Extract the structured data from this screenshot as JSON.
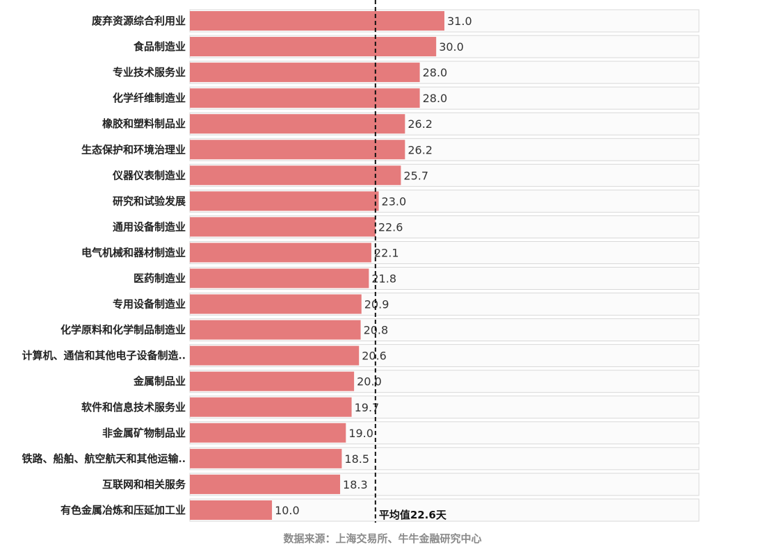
{
  "chart_data": {
    "type": "bar",
    "orientation": "horizontal",
    "categories": [
      "废弃资源综合利用业",
      "食品制造业",
      "专业技术服务业",
      "化学纤维制造业",
      "橡胶和塑料制品业",
      "生态保护和环境治理业",
      "仪器仪表制造业",
      "研究和试验发展",
      "通用设备制造业",
      "电气机械和器材制造业",
      "医药制造业",
      "专用设备制造业",
      "化学原料和化学制品制造业",
      "计算机、通信和其他电子设备制造..",
      "金属制品业",
      "软件和信息技术服务业",
      "非金属矿物制品业",
      "铁路、船舶、航空航天和其他运输..",
      "互联网和相关服务",
      "有色金属冶炼和压延加工业"
    ],
    "values": [
      31.0,
      30.0,
      28.0,
      28.0,
      26.2,
      26.2,
      25.7,
      23.0,
      22.6,
      22.1,
      21.8,
      20.9,
      20.8,
      20.6,
      20.0,
      19.7,
      19.0,
      18.5,
      18.3,
      10.0
    ],
    "value_labels": [
      "31.0",
      "30.0",
      "28.0",
      "28.0",
      "26.2",
      "26.2",
      "25.7",
      "23.0",
      "22.6",
      "22.1",
      "21.8",
      "20.9",
      "20.8",
      "20.6",
      "20.0",
      "19.7",
      "19.0",
      "18.5",
      "18.3",
      "10.0"
    ],
    "xlim": [
      0,
      62
    ],
    "average": {
      "value": 22.6,
      "label": "平均值22.6天"
    },
    "bar_color": "#e57b7c",
    "track_color": "#fbfbfb",
    "grid": false,
    "source": "数据来源：上海交易所、牛牛金融研究中心"
  }
}
